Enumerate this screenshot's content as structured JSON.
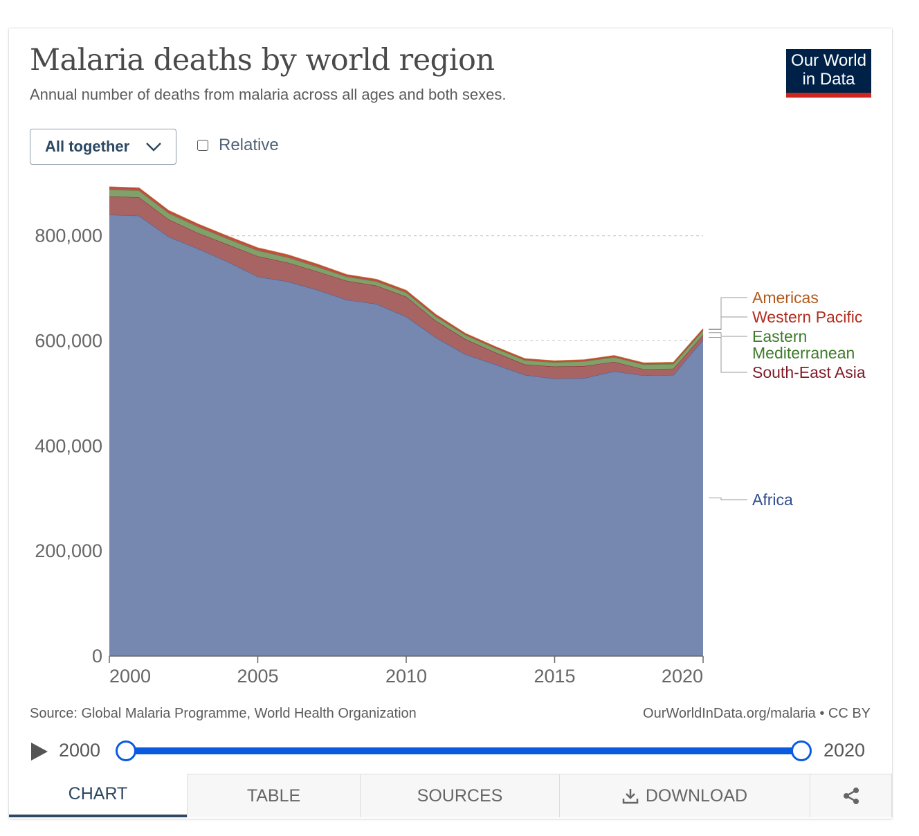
{
  "header": {
    "title": "Malaria deaths by world region",
    "subtitle": "Annual number of deaths from malaria across all ages and both sexes.",
    "logo_line1": "Our World",
    "logo_line2": "in Data"
  },
  "controls": {
    "stack_mode": "All together",
    "relative_label": "Relative",
    "relative_checked": false
  },
  "chart_data": {
    "type": "area",
    "stacked": true,
    "x": [
      2000,
      2001,
      2002,
      2003,
      2004,
      2005,
      2006,
      2007,
      2008,
      2009,
      2010,
      2011,
      2012,
      2013,
      2014,
      2015,
      2016,
      2017,
      2018,
      2019,
      2020
    ],
    "x_ticks": [
      "2000",
      "2005",
      "2010",
      "2015",
      "2020"
    ],
    "y_ticks": [
      "0",
      "200,000",
      "400,000",
      "600,000",
      "800,000"
    ],
    "ylim": [
      0,
      893000
    ],
    "grid": "horizontal dashed",
    "series": [
      {
        "name": "Africa",
        "color": "#7688b0",
        "label_color": "#2f4e8f",
        "values": [
          840000,
          838000,
          798000,
          775000,
          750000,
          722000,
          713000,
          697000,
          678000,
          670000,
          646000,
          606000,
          574000,
          555000,
          535000,
          528000,
          529000,
          542000,
          534000,
          535000,
          602000
        ]
      },
      {
        "name": "South-East Asia",
        "color": "#a86363",
        "label_color": "#7f1b27",
        "values": [
          35000,
          35000,
          33000,
          30000,
          33000,
          39000,
          36000,
          35000,
          36000,
          35000,
          38000,
          32000,
          29000,
          23000,
          20000,
          23000,
          23000,
          18000,
          12000,
          12000,
          9000
        ]
      },
      {
        "name": "Eastern Mediterranean",
        "color": "#81a06a",
        "label_color": "#3d7a2a",
        "values": [
          13000,
          13000,
          12000,
          12000,
          11000,
          11000,
          10000,
          9000,
          8000,
          8000,
          8000,
          8000,
          8000,
          8000,
          8000,
          8000,
          9000,
          9000,
          9000,
          9000,
          9000
        ]
      },
      {
        "name": "Western Pacific",
        "color": "#c44e4e",
        "label_color": "#b32b1f",
        "values": [
          4000,
          4000,
          4000,
          4000,
          4000,
          4000,
          4000,
          4000,
          3000,
          3000,
          3000,
          3000,
          2000,
          2000,
          2000,
          2000,
          2000,
          2000,
          2000,
          2000,
          2000
        ]
      },
      {
        "name": "Americas",
        "color": "#d96a2e",
        "label_color": "#b3581c",
        "values": [
          1000,
          1000,
          1000,
          1000,
          1000,
          1000,
          1000,
          1000,
          1000,
          1000,
          1000,
          1000,
          1000,
          1000,
          1000,
          1000,
          1000,
          1000,
          1000,
          1000,
          1000
        ]
      }
    ],
    "legend_labels": [
      {
        "series": "Americas",
        "lines": [
          "Americas"
        ]
      },
      {
        "series": "Western Pacific",
        "lines": [
          "Western Pacific"
        ]
      },
      {
        "series": "Eastern Mediterranean",
        "lines": [
          "Eastern",
          "Mediterranean"
        ]
      },
      {
        "series": "South-East Asia",
        "lines": [
          "South-East Asia"
        ]
      },
      {
        "series": "Africa",
        "lines": [
          "Africa"
        ]
      }
    ]
  },
  "footer": {
    "source": "Source: Global Malaria Programme, World Health Organization",
    "url": "OurWorldInData.org/malaria • CC BY"
  },
  "timeline": {
    "start": "2000",
    "end": "2020"
  },
  "tabs": {
    "chart": "CHART",
    "table": "TABLE",
    "sources": "SOURCES",
    "download": "DOWNLOAD"
  }
}
